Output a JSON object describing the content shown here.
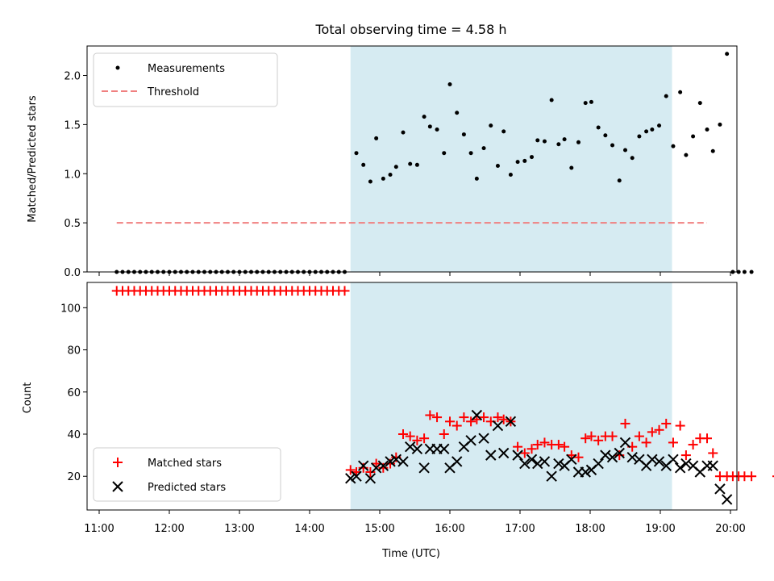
{
  "chart_data": {
    "type": "scatter",
    "title": "Total observing time = 4.58 h",
    "xlabel": "Time (UTC)",
    "x_ticks": [
      "11:00",
      "12:00",
      "13:00",
      "14:00",
      "15:00",
      "16:00",
      "17:00",
      "18:00",
      "19:00",
      "20:00"
    ],
    "observing_window": [
      "14:35",
      "19:10"
    ],
    "top_panel": {
      "ylabel": "Matched/Predicted stars",
      "ylim": [
        0,
        2.3
      ],
      "y_ticks": [
        "0.0",
        "0.5",
        "1.0",
        "1.5",
        "2.0"
      ],
      "threshold": {
        "value": 0.5,
        "x_range": [
          "11:15",
          "19:40"
        ],
        "color": "#f08080"
      },
      "legend": [
        "Measurements",
        "Threshold"
      ],
      "measurements": [
        [
          "11:15",
          0
        ],
        [
          "11:20",
          0
        ],
        [
          "11:25",
          0
        ],
        [
          "11:30",
          0
        ],
        [
          "11:35",
          0
        ],
        [
          "11:40",
          0
        ],
        [
          "11:45",
          0
        ],
        [
          "11:50",
          0
        ],
        [
          "11:55",
          0
        ],
        [
          "12:00",
          0
        ],
        [
          "12:05",
          0
        ],
        [
          "12:10",
          0
        ],
        [
          "12:15",
          0
        ],
        [
          "12:20",
          0
        ],
        [
          "12:25",
          0
        ],
        [
          "12:30",
          0
        ],
        [
          "12:35",
          0
        ],
        [
          "12:40",
          0
        ],
        [
          "12:45",
          0
        ],
        [
          "12:50",
          0
        ],
        [
          "12:55",
          0
        ],
        [
          "13:00",
          0
        ],
        [
          "13:05",
          0
        ],
        [
          "13:10",
          0
        ],
        [
          "13:15",
          0
        ],
        [
          "13:20",
          0
        ],
        [
          "13:25",
          0
        ],
        [
          "13:30",
          0
        ],
        [
          "13:35",
          0
        ],
        [
          "13:40",
          0
        ],
        [
          "13:45",
          0
        ],
        [
          "13:50",
          0
        ],
        [
          "13:55",
          0
        ],
        [
          "14:00",
          0
        ],
        [
          "14:05",
          0
        ],
        [
          "14:10",
          0
        ],
        [
          "14:15",
          0
        ],
        [
          "14:20",
          0
        ],
        [
          "14:25",
          0
        ],
        [
          "14:30",
          0
        ],
        [
          "14:40",
          1.21
        ],
        [
          "14:46",
          1.09
        ],
        [
          "14:52",
          0.92
        ],
        [
          "14:57",
          1.36
        ],
        [
          "15:03",
          0.95
        ],
        [
          "15:09",
          0.99
        ],
        [
          "15:14",
          1.07
        ],
        [
          "15:20",
          1.42
        ],
        [
          "15:26",
          1.1
        ],
        [
          "15:32",
          1.09
        ],
        [
          "15:38",
          1.58
        ],
        [
          "15:43",
          1.48
        ],
        [
          "15:49",
          1.45
        ],
        [
          "15:55",
          1.21
        ],
        [
          "16:00",
          1.91
        ],
        [
          "16:06",
          1.62
        ],
        [
          "16:12",
          1.4
        ],
        [
          "16:18",
          1.21
        ],
        [
          "16:23",
          0.95
        ],
        [
          "16:29",
          1.26
        ],
        [
          "16:35",
          1.49
        ],
        [
          "16:41",
          1.08
        ],
        [
          "16:46",
          1.43
        ],
        [
          "16:52",
          0.99
        ],
        [
          "16:58",
          1.12
        ],
        [
          "17:04",
          1.13
        ],
        [
          "17:10",
          1.17
        ],
        [
          "17:15",
          1.34
        ],
        [
          "17:21",
          1.33
        ],
        [
          "17:27",
          1.75
        ],
        [
          "17:33",
          1.3
        ],
        [
          "17:38",
          1.35
        ],
        [
          "17:44",
          1.06
        ],
        [
          "17:50",
          1.32
        ],
        [
          "17:56",
          1.72
        ],
        [
          "18:01",
          1.73
        ],
        [
          "18:07",
          1.47
        ],
        [
          "18:13",
          1.39
        ],
        [
          "18:19",
          1.29
        ],
        [
          "18:25",
          0.93
        ],
        [
          "18:30",
          1.24
        ],
        [
          "18:36",
          1.16
        ],
        [
          "18:42",
          1.38
        ],
        [
          "18:48",
          1.43
        ],
        [
          "18:53",
          1.45
        ],
        [
          "18:59",
          1.49
        ],
        [
          "19:05",
          1.79
        ],
        [
          "19:11",
          1.28
        ],
        [
          "19:17",
          1.83
        ],
        [
          "19:22",
          1.19
        ],
        [
          "19:28",
          1.38
        ],
        [
          "19:34",
          1.72
        ],
        [
          "19:40",
          1.45
        ],
        [
          "19:45",
          1.23
        ],
        [
          "19:51",
          1.5
        ],
        [
          "19:57",
          2.22
        ],
        [
          "20:02",
          0
        ],
        [
          "20:07",
          0
        ],
        [
          "20:12",
          0
        ],
        [
          "20:18",
          0
        ],
        [
          "20:40",
          0
        ]
      ]
    },
    "bottom_panel": {
      "ylabel": "Count",
      "ylim": [
        4,
        112
      ],
      "y_ticks": [
        "20",
        "40",
        "60",
        "80",
        "100"
      ],
      "legend": [
        "Matched stars",
        "Predicted stars"
      ],
      "series": [
        {
          "name": "Matched stars",
          "marker": "plus",
          "color": "#ff0000",
          "points": [
            [
              "11:15",
              108
            ],
            [
              "11:20",
              108
            ],
            [
              "11:25",
              108
            ],
            [
              "11:30",
              108
            ],
            [
              "11:35",
              108
            ],
            [
              "11:40",
              108
            ],
            [
              "11:45",
              108
            ],
            [
              "11:50",
              108
            ],
            [
              "11:55",
              108
            ],
            [
              "12:00",
              108
            ],
            [
              "12:05",
              108
            ],
            [
              "12:10",
              108
            ],
            [
              "12:15",
              108
            ],
            [
              "12:20",
              108
            ],
            [
              "12:25",
              108
            ],
            [
              "12:30",
              108
            ],
            [
              "12:35",
              108
            ],
            [
              "12:40",
              108
            ],
            [
              "12:45",
              108
            ],
            [
              "12:50",
              108
            ],
            [
              "12:55",
              108
            ],
            [
              "13:00",
              108
            ],
            [
              "13:05",
              108
            ],
            [
              "13:10",
              108
            ],
            [
              "13:15",
              108
            ],
            [
              "13:20",
              108
            ],
            [
              "13:25",
              108
            ],
            [
              "13:30",
              108
            ],
            [
              "13:35",
              108
            ],
            [
              "13:40",
              108
            ],
            [
              "13:45",
              108
            ],
            [
              "13:50",
              108
            ],
            [
              "13:55",
              108
            ],
            [
              "14:00",
              108
            ],
            [
              "14:05",
              108
            ],
            [
              "14:10",
              108
            ],
            [
              "14:15",
              108
            ],
            [
              "14:20",
              108
            ],
            [
              "14:25",
              108
            ],
            [
              "14:30",
              108
            ],
            [
              "14:35",
              23
            ],
            [
              "14:40",
              22
            ],
            [
              "14:46",
              24
            ],
            [
              "14:52",
              22
            ],
            [
              "14:57",
              26
            ],
            [
              "15:03",
              24
            ],
            [
              "15:09",
              26
            ],
            [
              "15:14",
              29
            ],
            [
              "15:20",
              40
            ],
            [
              "15:26",
              39
            ],
            [
              "15:32",
              37
            ],
            [
              "15:38",
              38
            ],
            [
              "15:43",
              49
            ],
            [
              "15:49",
              48
            ],
            [
              "15:55",
              40
            ],
            [
              "16:00",
              46
            ],
            [
              "16:06",
              44
            ],
            [
              "16:12",
              48
            ],
            [
              "16:18",
              46
            ],
            [
              "16:23",
              47
            ],
            [
              "16:29",
              48
            ],
            [
              "16:35",
              46
            ],
            [
              "16:41",
              48
            ],
            [
              "16:46",
              47
            ],
            [
              "16:52",
              46
            ],
            [
              "16:58",
              34
            ],
            [
              "17:04",
              31
            ],
            [
              "17:10",
              33
            ],
            [
              "17:15",
              35
            ],
            [
              "17:21",
              36
            ],
            [
              "17:27",
              35
            ],
            [
              "17:33",
              35
            ],
            [
              "17:38",
              34
            ],
            [
              "17:44",
              30
            ],
            [
              "17:50",
              29
            ],
            [
              "17:56",
              38
            ],
            [
              "18:01",
              39
            ],
            [
              "18:07",
              37
            ],
            [
              "18:13",
              39
            ],
            [
              "18:19",
              39
            ],
            [
              "18:25",
              30
            ],
            [
              "18:30",
              45
            ],
            [
              "18:36",
              34
            ],
            [
              "18:42",
              39
            ],
            [
              "18:48",
              36
            ],
            [
              "18:53",
              41
            ],
            [
              "18:59",
              42
            ],
            [
              "19:05",
              45
            ],
            [
              "19:11",
              36
            ],
            [
              "19:17",
              44
            ],
            [
              "19:22",
              30
            ],
            [
              "19:28",
              35
            ],
            [
              "19:34",
              38
            ],
            [
              "19:40",
              38
            ],
            [
              "19:45",
              31
            ],
            [
              "19:51",
              20
            ],
            [
              "19:57",
              20
            ],
            [
              "20:02",
              20
            ],
            [
              "20:07",
              20
            ],
            [
              "20:12",
              20
            ],
            [
              "20:18",
              20
            ],
            [
              "20:40",
              20
            ]
          ]
        },
        {
          "name": "Predicted stars",
          "marker": "x",
          "color": "#000000",
          "points": [
            [
              "14:35",
              19
            ],
            [
              "14:40",
              20
            ],
            [
              "14:46",
              25
            ],
            [
              "14:52",
              19
            ],
            [
              "14:57",
              24
            ],
            [
              "15:03",
              25
            ],
            [
              "15:09",
              27
            ],
            [
              "15:14",
              28
            ],
            [
              "15:20",
              27
            ],
            [
              "15:26",
              34
            ],
            [
              "15:32",
              33
            ],
            [
              "15:38",
              24
            ],
            [
              "15:43",
              33
            ],
            [
              "15:49",
              33
            ],
            [
              "15:55",
              33
            ],
            [
              "16:00",
              24
            ],
            [
              "16:06",
              27
            ],
            [
              "16:12",
              34
            ],
            [
              "16:18",
              37
            ],
            [
              "16:23",
              49
            ],
            [
              "16:29",
              38
            ],
            [
              "16:35",
              30
            ],
            [
              "16:41",
              44
            ],
            [
              "16:46",
              31
            ],
            [
              "16:52",
              46
            ],
            [
              "16:58",
              30
            ],
            [
              "17:04",
              26
            ],
            [
              "17:10",
              28
            ],
            [
              "17:15",
              26
            ],
            [
              "17:21",
              27
            ],
            [
              "17:27",
              20
            ],
            [
              "17:33",
              26
            ],
            [
              "17:38",
              25
            ],
            [
              "17:44",
              28
            ],
            [
              "17:50",
              22
            ],
            [
              "17:56",
              22
            ],
            [
              "18:01",
              23
            ],
            [
              "18:07",
              26
            ],
            [
              "18:13",
              30
            ],
            [
              "18:19",
              29
            ],
            [
              "18:25",
              31
            ],
            [
              "18:30",
              36
            ],
            [
              "18:36",
              29
            ],
            [
              "18:42",
              28
            ],
            [
              "18:48",
              25
            ],
            [
              "18:53",
              28
            ],
            [
              "18:59",
              27
            ],
            [
              "19:05",
              25
            ],
            [
              "19:11",
              28
            ],
            [
              "19:17",
              24
            ],
            [
              "19:22",
              26
            ],
            [
              "19:28",
              25
            ],
            [
              "19:34",
              22
            ],
            [
              "19:40",
              25
            ],
            [
              "19:45",
              25
            ],
            [
              "19:51",
              14
            ],
            [
              "19:57",
              9
            ]
          ]
        }
      ]
    },
    "colors": {
      "window": "#add8e6",
      "threshold": "#f08080",
      "matched": "#ff0000",
      "predicted": "#000000",
      "measurement": "#000000"
    }
  }
}
